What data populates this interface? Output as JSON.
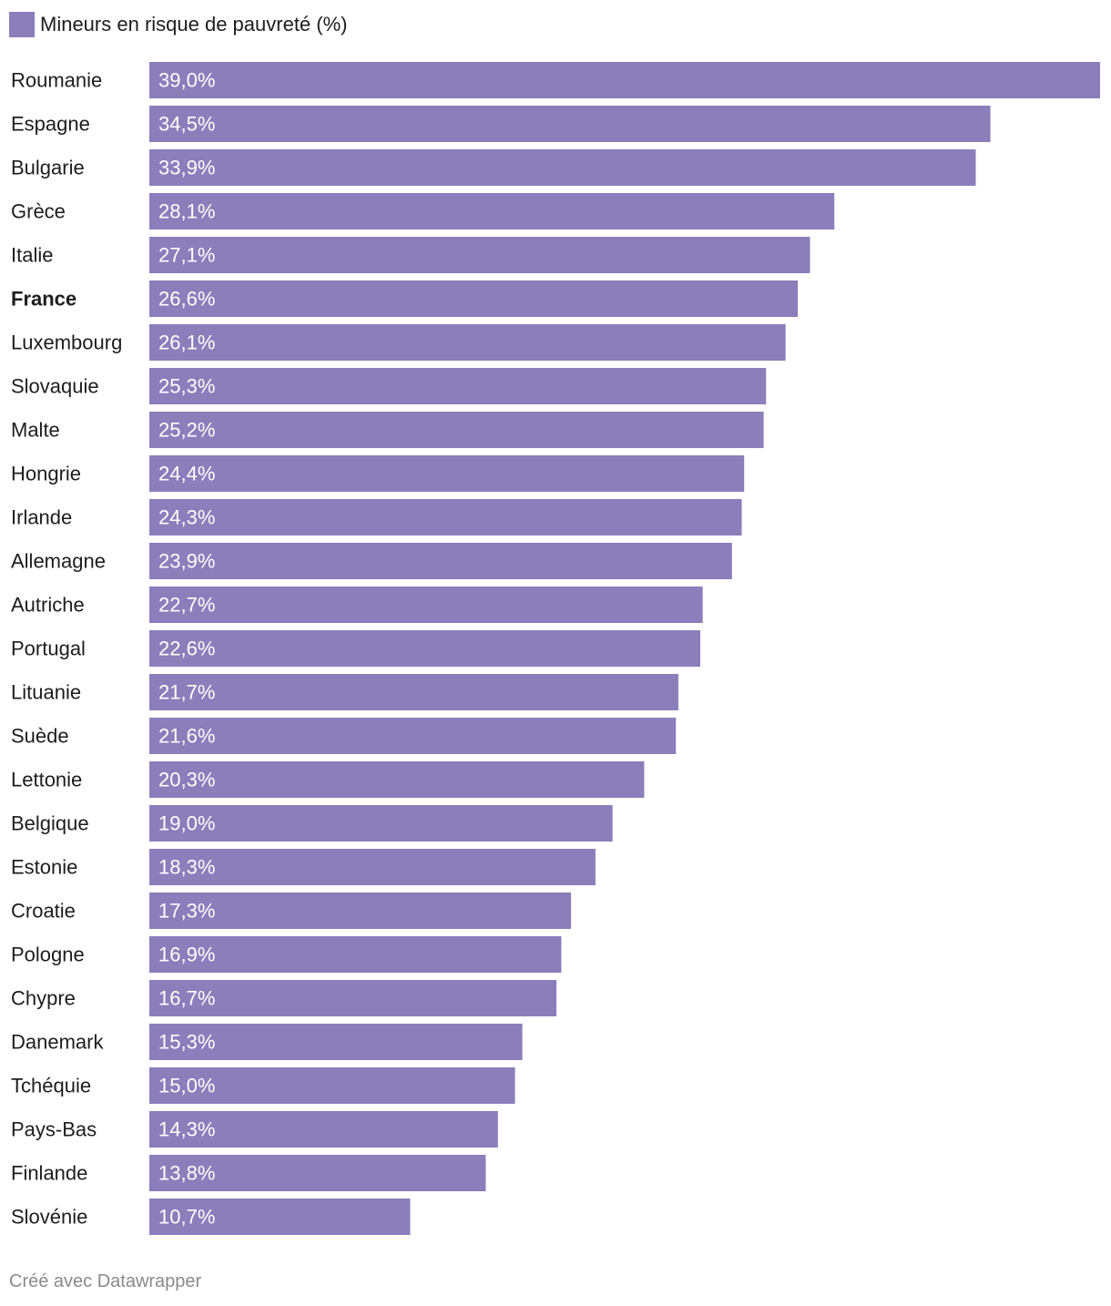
{
  "colors": {
    "bar": "#8c7dbb",
    "bar_label": "#ffffff",
    "text": "#1d1d1d",
    "footer": "#8a8a8a"
  },
  "legend": {
    "label": "Mineurs en risque de pauvreté (%)"
  },
  "footer": {
    "text": "Créé avec Datawrapper"
  },
  "chart_data": {
    "type": "bar",
    "orientation": "horizontal",
    "title": "",
    "xlabel": "",
    "ylabel": "",
    "grid": false,
    "legend_position": "top-left",
    "xlim": [
      0,
      39.0
    ],
    "highlighted_category": "France",
    "categories": [
      "Roumanie",
      "Espagne",
      "Bulgarie",
      "Grèce",
      "Italie",
      "France",
      "Luxembourg",
      "Slovaquie",
      "Malte",
      "Hongrie",
      "Irlande",
      "Allemagne",
      "Autriche",
      "Portugal",
      "Lituanie",
      "Suède",
      "Lettonie",
      "Belgique",
      "Estonie",
      "Croatie",
      "Pologne",
      "Chypre",
      "Danemark",
      "Tchéquie",
      "Pays-Bas",
      "Finlande",
      "Slovénie"
    ],
    "series": [
      {
        "name": "Mineurs en risque de pauvreté (%)",
        "values": [
          39.0,
          34.5,
          33.9,
          28.1,
          27.1,
          26.6,
          26.1,
          25.3,
          25.2,
          24.4,
          24.3,
          23.9,
          22.7,
          22.6,
          21.7,
          21.6,
          20.3,
          19.0,
          18.3,
          17.3,
          16.9,
          16.7,
          15.3,
          15.0,
          14.3,
          13.8,
          10.7
        ],
        "labels": [
          "39,0%",
          "34,5%",
          "33,9%",
          "28,1%",
          "27,1%",
          "26,6%",
          "26,1%",
          "25,3%",
          "25,2%",
          "24,4%",
          "24,3%",
          "23,9%",
          "22,7%",
          "22,6%",
          "21,7%",
          "21,6%",
          "20,3%",
          "19,0%",
          "18,3%",
          "17,3%",
          "16,9%",
          "16,7%",
          "15,3%",
          "15,0%",
          "14,3%",
          "13,8%",
          "10,7%"
        ]
      }
    ]
  }
}
